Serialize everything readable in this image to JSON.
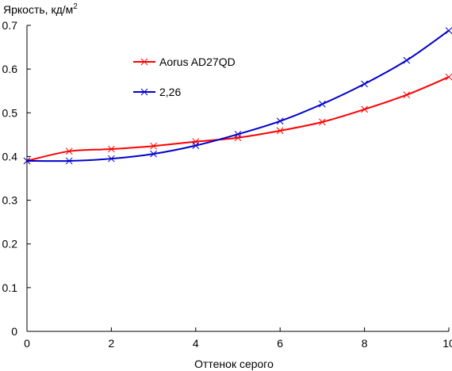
{
  "chart_data": {
    "type": "line",
    "ylabel": "Яркость, кд/м",
    "ylabel_sup": "2",
    "xlabel": "Оттенок серого",
    "xlim": [
      0,
      10
    ],
    "ylim": [
      0,
      0.7
    ],
    "x_ticks": [
      0,
      2,
      4,
      6,
      8,
      10
    ],
    "y_ticks": [
      0,
      0.1,
      0.2,
      0.3,
      0.4,
      0.5,
      0.6,
      0.7
    ],
    "x_tick_labels": [
      "0",
      "2",
      "4",
      "6",
      "8",
      "10"
    ],
    "y_tick_labels": [
      "0",
      "0.1",
      "0.2",
      "0.3",
      "0.4",
      "0.5",
      "0.6",
      "0.7"
    ],
    "grid": false,
    "legend_position": "upper-left",
    "series": [
      {
        "name": "Aorus AD27QD",
        "color": "#ff0000",
        "marker": "x",
        "x": [
          0,
          1,
          2,
          3,
          4,
          5,
          6,
          7,
          8,
          9,
          10
        ],
        "y": [
          0.39,
          0.412,
          0.417,
          0.424,
          0.434,
          0.443,
          0.459,
          0.479,
          0.508,
          0.541,
          0.582
        ]
      },
      {
        "name": "2,26",
        "color": "#0000cc",
        "marker": "x",
        "x": [
          0,
          1,
          2,
          3,
          4,
          5,
          6,
          7,
          8,
          9,
          10
        ],
        "y": [
          0.39,
          0.39,
          0.395,
          0.406,
          0.425,
          0.451,
          0.481,
          0.52,
          0.566,
          0.62,
          0.688
        ]
      }
    ]
  }
}
